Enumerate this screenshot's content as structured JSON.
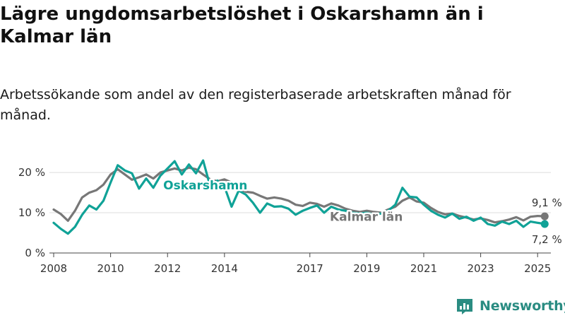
{
  "title": "Lägre ungdomsarbetslöshet i Oskarshamn än i Kalmar län",
  "subtitle": "Arbetssökande som andel av den registerbaserade arbetskraften månad för månad.",
  "brand": "Newsworthy",
  "colors": {
    "oskarshamn": "#10a297",
    "kalmar": "#777777",
    "grid": "#dcdcdc",
    "brand": "#2a8c82"
  },
  "chart_data": {
    "type": "line",
    "xlabel": "",
    "ylabel": "",
    "ylim": [
      0,
      23
    ],
    "xlim": [
      "2008-01",
      "2025-06"
    ],
    "y_ticks": [
      {
        "value": 0,
        "label": "0 %"
      },
      {
        "value": 10,
        "label": "10 %"
      },
      {
        "value": 20,
        "label": "20 %"
      }
    ],
    "x_ticks": [
      "2008",
      "2010",
      "2012",
      "2014",
      "2017",
      "2019",
      "2021",
      "2023",
      "2025"
    ],
    "grid": true,
    "legend": "inline labels",
    "series": [
      {
        "name": "Kalmar län",
        "end_label": "9,1 %",
        "points": [
          [
            "2008-01",
            10.8
          ],
          [
            "2008-04",
            9.7
          ],
          [
            "2008-07",
            8.0
          ],
          [
            "2008-10",
            10.5
          ],
          [
            "2009-01",
            13.8
          ],
          [
            "2009-04",
            15.0
          ],
          [
            "2009-07",
            15.6
          ],
          [
            "2009-10",
            17.0
          ],
          [
            "2010-01",
            19.5
          ],
          [
            "2010-04",
            20.8
          ],
          [
            "2010-07",
            19.5
          ],
          [
            "2010-10",
            18.2
          ],
          [
            "2011-01",
            18.8
          ],
          [
            "2011-04",
            19.5
          ],
          [
            "2011-07",
            18.5
          ],
          [
            "2011-10",
            20.0
          ],
          [
            "2012-01",
            20.5
          ],
          [
            "2012-04",
            21.0
          ],
          [
            "2012-07",
            20.5
          ],
          [
            "2012-10",
            21.2
          ],
          [
            "2013-01",
            20.8
          ],
          [
            "2013-04",
            19.5
          ],
          [
            "2013-07",
            18.3
          ],
          [
            "2013-10",
            17.8
          ],
          [
            "2014-01",
            18.3
          ],
          [
            "2014-04",
            17.5
          ],
          [
            "2014-07",
            16.0
          ],
          [
            "2014-10",
            15.2
          ],
          [
            "2015-01",
            15.0
          ],
          [
            "2015-04",
            14.2
          ],
          [
            "2015-07",
            13.5
          ],
          [
            "2015-10",
            13.8
          ],
          [
            "2016-01",
            13.5
          ],
          [
            "2016-04",
            13.0
          ],
          [
            "2016-07",
            12.0
          ],
          [
            "2016-10",
            11.7
          ],
          [
            "2017-01",
            12.5
          ],
          [
            "2017-04",
            12.2
          ],
          [
            "2017-07",
            11.5
          ],
          [
            "2017-10",
            12.3
          ],
          [
            "2018-01",
            11.8
          ],
          [
            "2018-04",
            11.0
          ],
          [
            "2018-07",
            10.5
          ],
          [
            "2018-10",
            10.2
          ],
          [
            "2019-01",
            10.5
          ],
          [
            "2019-04",
            10.2
          ],
          [
            "2019-07",
            10.0
          ],
          [
            "2019-10",
            10.8
          ],
          [
            "2020-01",
            11.5
          ],
          [
            "2020-04",
            13.0
          ],
          [
            "2020-07",
            13.8
          ],
          [
            "2020-10",
            12.8
          ],
          [
            "2021-01",
            12.5
          ],
          [
            "2021-04",
            11.2
          ],
          [
            "2021-07",
            10.2
          ],
          [
            "2021-10",
            9.6
          ],
          [
            "2022-01",
            9.8
          ],
          [
            "2022-04",
            9.2
          ],
          [
            "2022-07",
            8.8
          ],
          [
            "2022-10",
            8.3
          ],
          [
            "2023-01",
            8.6
          ],
          [
            "2023-04",
            8.2
          ],
          [
            "2023-07",
            7.6
          ],
          [
            "2023-10",
            7.9
          ],
          [
            "2024-01",
            8.3
          ],
          [
            "2024-04",
            8.9
          ],
          [
            "2024-07",
            8.1
          ],
          [
            "2024-10",
            9.0
          ],
          [
            "2025-01",
            9.2
          ],
          [
            "2025-04",
            9.1
          ]
        ]
      },
      {
        "name": "Oskarshamn",
        "end_label": "7,2 %",
        "points": [
          [
            "2008-01",
            7.5
          ],
          [
            "2008-04",
            6.0
          ],
          [
            "2008-07",
            4.8
          ],
          [
            "2008-10",
            6.5
          ],
          [
            "2009-01",
            9.5
          ],
          [
            "2009-04",
            11.8
          ],
          [
            "2009-07",
            10.8
          ],
          [
            "2009-10",
            13.0
          ],
          [
            "2010-01",
            17.5
          ],
          [
            "2010-04",
            21.8
          ],
          [
            "2010-07",
            20.5
          ],
          [
            "2010-10",
            19.8
          ],
          [
            "2011-01",
            16.0
          ],
          [
            "2011-04",
            18.5
          ],
          [
            "2011-07",
            16.2
          ],
          [
            "2011-10",
            19.2
          ],
          [
            "2012-01",
            21.0
          ],
          [
            "2012-04",
            22.8
          ],
          [
            "2012-07",
            19.5
          ],
          [
            "2012-10",
            22.0
          ],
          [
            "2013-01",
            19.8
          ],
          [
            "2013-04",
            23.0
          ],
          [
            "2013-07",
            16.5
          ],
          [
            "2013-10",
            18.0
          ],
          [
            "2014-01",
            16.5
          ],
          [
            "2014-04",
            11.5
          ],
          [
            "2014-07",
            15.5
          ],
          [
            "2014-10",
            14.5
          ],
          [
            "2015-01",
            12.5
          ],
          [
            "2015-04",
            10.0
          ],
          [
            "2015-07",
            12.3
          ],
          [
            "2015-10",
            11.5
          ],
          [
            "2016-01",
            11.6
          ],
          [
            "2016-04",
            11.0
          ],
          [
            "2016-07",
            9.5
          ],
          [
            "2016-10",
            10.5
          ],
          [
            "2017-01",
            11.2
          ],
          [
            "2017-04",
            11.8
          ],
          [
            "2017-07",
            10.0
          ],
          [
            "2017-10",
            11.5
          ],
          [
            "2018-01",
            10.8
          ],
          [
            "2018-04",
            10.5
          ],
          [
            "2018-07",
            10.0
          ],
          [
            "2018-10",
            9.8
          ],
          [
            "2019-01",
            10.0
          ],
          [
            "2019-04",
            9.5
          ],
          [
            "2019-07",
            9.8
          ],
          [
            "2019-10",
            10.5
          ],
          [
            "2020-01",
            12.0
          ],
          [
            "2020-04",
            16.2
          ],
          [
            "2020-07",
            14.0
          ],
          [
            "2020-10",
            13.8
          ],
          [
            "2021-01",
            12.0
          ],
          [
            "2021-04",
            10.5
          ],
          [
            "2021-07",
            9.5
          ],
          [
            "2021-10",
            8.8
          ],
          [
            "2022-01",
            9.8
          ],
          [
            "2022-04",
            8.5
          ],
          [
            "2022-07",
            9.0
          ],
          [
            "2022-10",
            8.0
          ],
          [
            "2023-01",
            8.8
          ],
          [
            "2023-04",
            7.2
          ],
          [
            "2023-07",
            6.8
          ],
          [
            "2023-10",
            7.8
          ],
          [
            "2024-01",
            7.2
          ],
          [
            "2024-04",
            8.0
          ],
          [
            "2024-07",
            6.5
          ],
          [
            "2024-10",
            7.8
          ],
          [
            "2025-01",
            7.5
          ],
          [
            "2025-04",
            7.2
          ]
        ]
      }
    ]
  }
}
